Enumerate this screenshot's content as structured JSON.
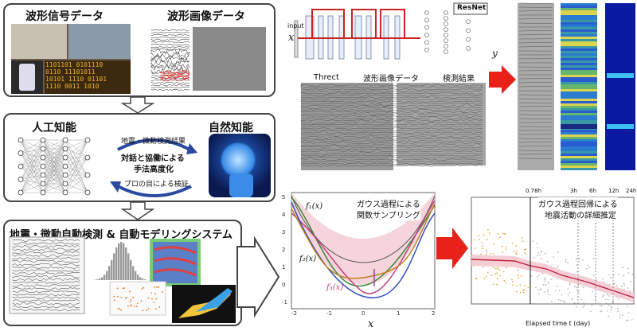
{
  "left": {
    "box1": {
      "title_a": "波形信号データ",
      "title_b": "波形画像データ"
    },
    "box2": {
      "title_ai": "人工知能",
      "title_nat": "自然知能",
      "line1": "地震・微動検測結果",
      "line2": "対話と協働による",
      "line3": "手法高度化",
      "line4": "プロの目による検証"
    },
    "box3": {
      "title": "地震・微動自動検測 & 自動モデリングシステム"
    }
  },
  "right_top": {
    "resnet": "ResNet",
    "input": "input",
    "x": "x",
    "y": "y",
    "label_a": "Threct",
    "label_b": "波形画像データ",
    "label_c": "検測結果"
  },
  "right_bottom": {
    "g1_title_1": "ガウス過程による",
    "g1_title_2": "関数サンプリング",
    "f1": "f₁(x)",
    "f2": "f₂(x)",
    "f3": "f₃(x)",
    "xlabel": "x",
    "g2_title_1": "ガウス過程回帰による",
    "g2_title_2": "地震活動の詳細推定",
    "xlabel2": "Elapsed time t (day)",
    "top_ticks": [
      "0.78h",
      "3h",
      "6h",
      "12h",
      "24h"
    ]
  },
  "colors": {
    "arrow": "#e8221a",
    "panel_border": "#444",
    "band": "#f4c9d2"
  }
}
